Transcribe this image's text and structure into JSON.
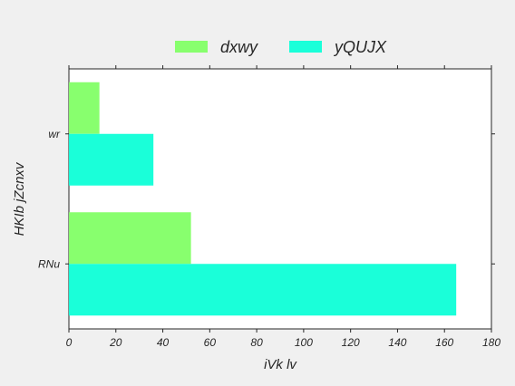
{
  "chart_data": {
    "type": "bar",
    "orientation": "horizontal",
    "categories": [
      "RNu",
      "wr"
    ],
    "series": [
      {
        "name": "dxwy",
        "values": [
          52,
          13
        ],
        "color": "#88ff6e"
      },
      {
        "name": "yQUJX",
        "values": [
          165,
          36
        ],
        "color": "#1affd9"
      }
    ],
    "xlabel": "iVk lv",
    "ylabel": "HKIb jZcnxv",
    "xlim": [
      0,
      180
    ],
    "xticks": [
      "0",
      "20",
      "40",
      "60",
      "80",
      "100",
      "120",
      "140",
      "160",
      "180"
    ],
    "grid": false,
    "legend_position": "top-center"
  }
}
